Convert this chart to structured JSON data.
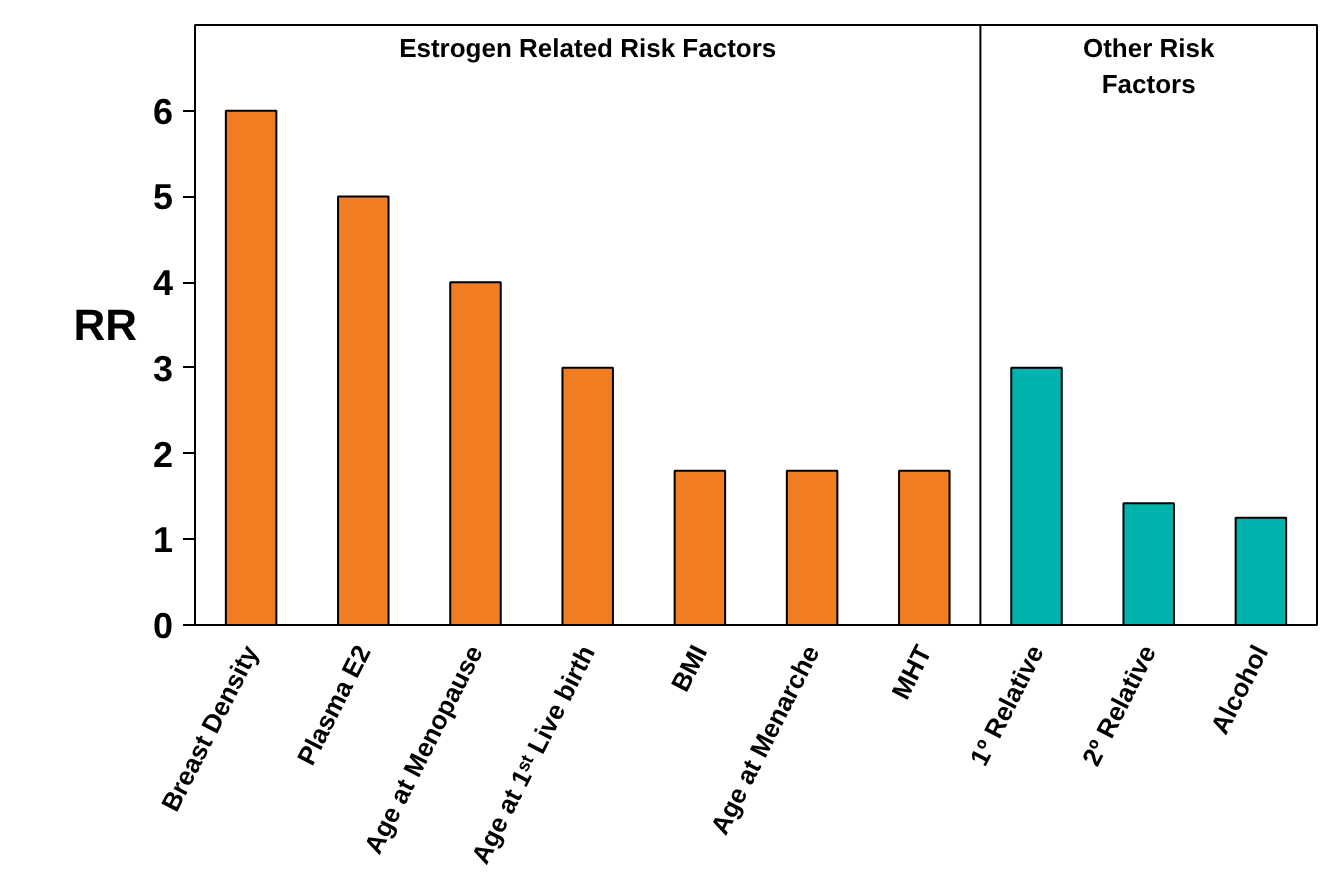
{
  "chart_data": {
    "type": "bar",
    "ylabel": "RR",
    "categories": [
      "Breast Density",
      "Plasma E2",
      "Age at Menopause",
      "Age at 1ˢᵗ Live birth",
      "BMI",
      "Age at Menarche",
      "MHT",
      "1º Relative",
      "2º Relative",
      "Alcohol"
    ],
    "values": [
      6,
      5,
      4,
      3,
      1.8,
      1.8,
      1.8,
      3,
      1.42,
      1.25
    ],
    "colors": [
      "#f07d22",
      "#f07d22",
      "#f07d22",
      "#f07d22",
      "#f07d22",
      "#f07d22",
      "#f07d22",
      "#00b3ac",
      "#00b3ac",
      "#00b3ac"
    ],
    "ylim": [
      0,
      7
    ],
    "yticks": [
      0,
      1,
      2,
      3,
      4,
      5,
      6
    ],
    "grid": false,
    "annotations": [
      "Estrogen Related Risk Factors",
      "Other Risk\nFactors"
    ]
  }
}
